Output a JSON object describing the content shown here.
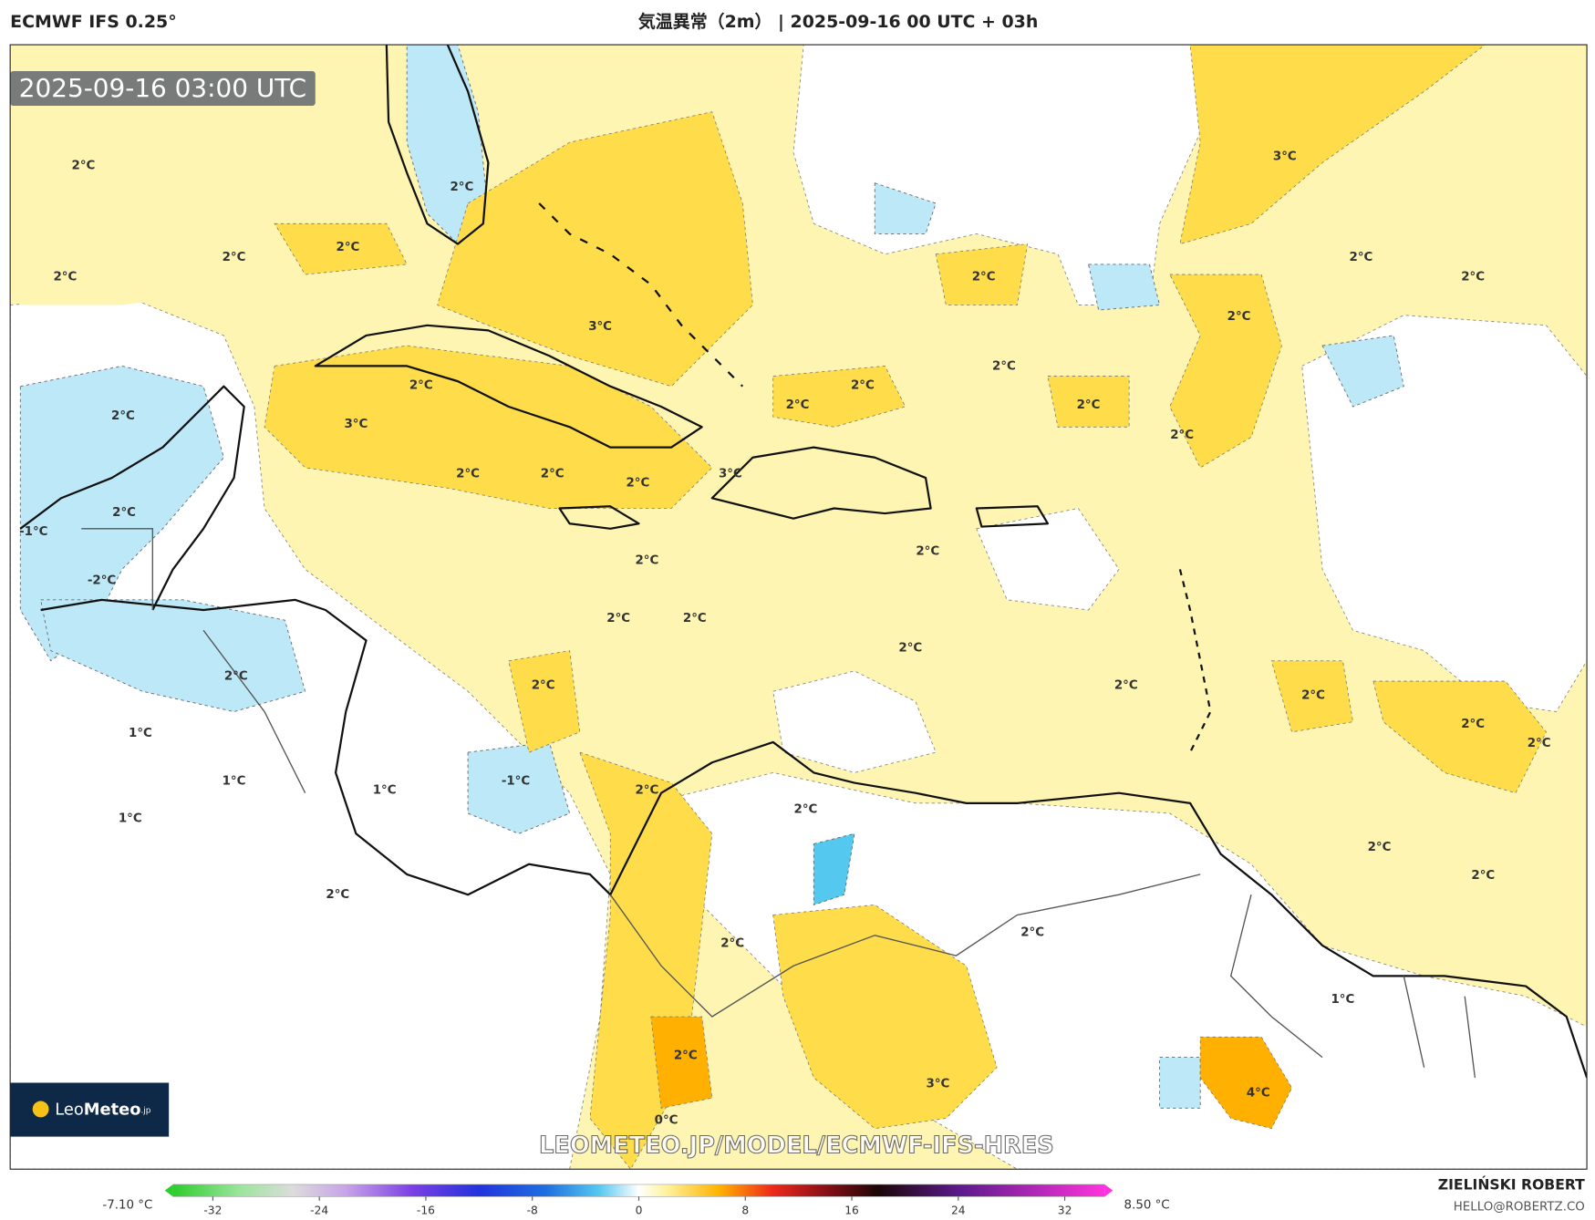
{
  "header": {
    "model": "ECMWF IFS 0.25°",
    "title": "気温異常（2m） | 2025-09-16 00 UTC + 03h"
  },
  "map": {
    "timestamp": "2025-09-16 03:00 UTC",
    "contour_labels": [
      "2°C",
      "2°C",
      "2°C",
      "2°C",
      "2°C",
      "3°C",
      "2°C",
      "2°C",
      "3°C",
      "2°C",
      "2°C",
      "2°C",
      "3°C",
      "2°C",
      "-1°C",
      "-2°C",
      "2°C",
      "2°C",
      "2°C",
      "2°C",
      "2°C",
      "1°C",
      "1°C",
      "1°C",
      "-1°C",
      "1°C",
      "2°C",
      "2°C",
      "2°C",
      "2°C",
      "2°C",
      "0°C",
      "3°C",
      "4°C",
      "2°C",
      "1°C",
      "3°C",
      "2°C",
      "2°C",
      "2°C",
      "2°C",
      "2°C",
      "2°C",
      "2°C",
      "2°C",
      "2°C",
      "2°C",
      "2°C",
      "2°C",
      "2°C",
      "2°C",
      "2°C",
      "2°C",
      "2°C"
    ],
    "watermark": "LEOMETEO.JP/MODEL/ECMWF-IFS-HRES",
    "logo": {
      "name": "Leo",
      "brand": "Meteo",
      "suffix": ".jp"
    }
  },
  "colorbar": {
    "min_label": "-7.10 °C",
    "max_label": "8.50 °C",
    "range": [
      -35,
      35
    ],
    "ticks": [
      -32,
      -24,
      -16,
      -8,
      0,
      8,
      16,
      24,
      32
    ],
    "stops": [
      {
        "value": -35,
        "color": "#2ecc2e"
      },
      {
        "value": -30,
        "color": "#9be59b"
      },
      {
        "value": -26,
        "color": "#dcdcdc"
      },
      {
        "value": -22,
        "color": "#c7a3e8"
      },
      {
        "value": -17,
        "color": "#7b3fe4"
      },
      {
        "value": -12,
        "color": "#2233dd"
      },
      {
        "value": -7,
        "color": "#1f6fe0"
      },
      {
        "value": -3,
        "color": "#55c8f0"
      },
      {
        "value": 0,
        "color": "#ffffff"
      },
      {
        "value": 2,
        "color": "#fff3a0"
      },
      {
        "value": 6,
        "color": "#ffb400"
      },
      {
        "value": 10,
        "color": "#ee2a1a"
      },
      {
        "value": 14,
        "color": "#8a0f18"
      },
      {
        "value": 18,
        "color": "#1b0606"
      },
      {
        "value": 24,
        "color": "#5a1a8a"
      },
      {
        "value": 35,
        "color": "#ff33dd"
      }
    ]
  },
  "credit": {
    "author": "ZIELIŃSKI ROBERT",
    "email": "HELLO@ROBERTZ.CO"
  }
}
